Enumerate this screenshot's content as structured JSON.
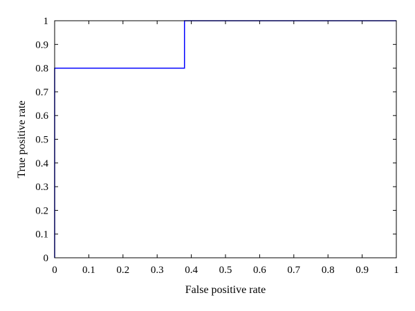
{
  "chart_data": {
    "type": "line",
    "xlabel": "False positive rate",
    "ylabel": "True positive rate",
    "xlim": [
      0,
      1
    ],
    "ylim": [
      0,
      1
    ],
    "xticks": [
      0,
      0.1,
      0.2,
      0.3,
      0.4,
      0.5,
      0.6,
      0.7,
      0.8,
      0.9,
      1
    ],
    "yticks": [
      0,
      0.1,
      0.2,
      0.3,
      0.4,
      0.5,
      0.6,
      0.7,
      0.8,
      0.9,
      1
    ],
    "grid": false,
    "series": [
      {
        "color": "#0000ff",
        "x": [
          0,
          0,
          0.38,
          0.38,
          1
        ],
        "y": [
          0,
          0.8,
          0.8,
          1,
          1
        ]
      }
    ]
  }
}
